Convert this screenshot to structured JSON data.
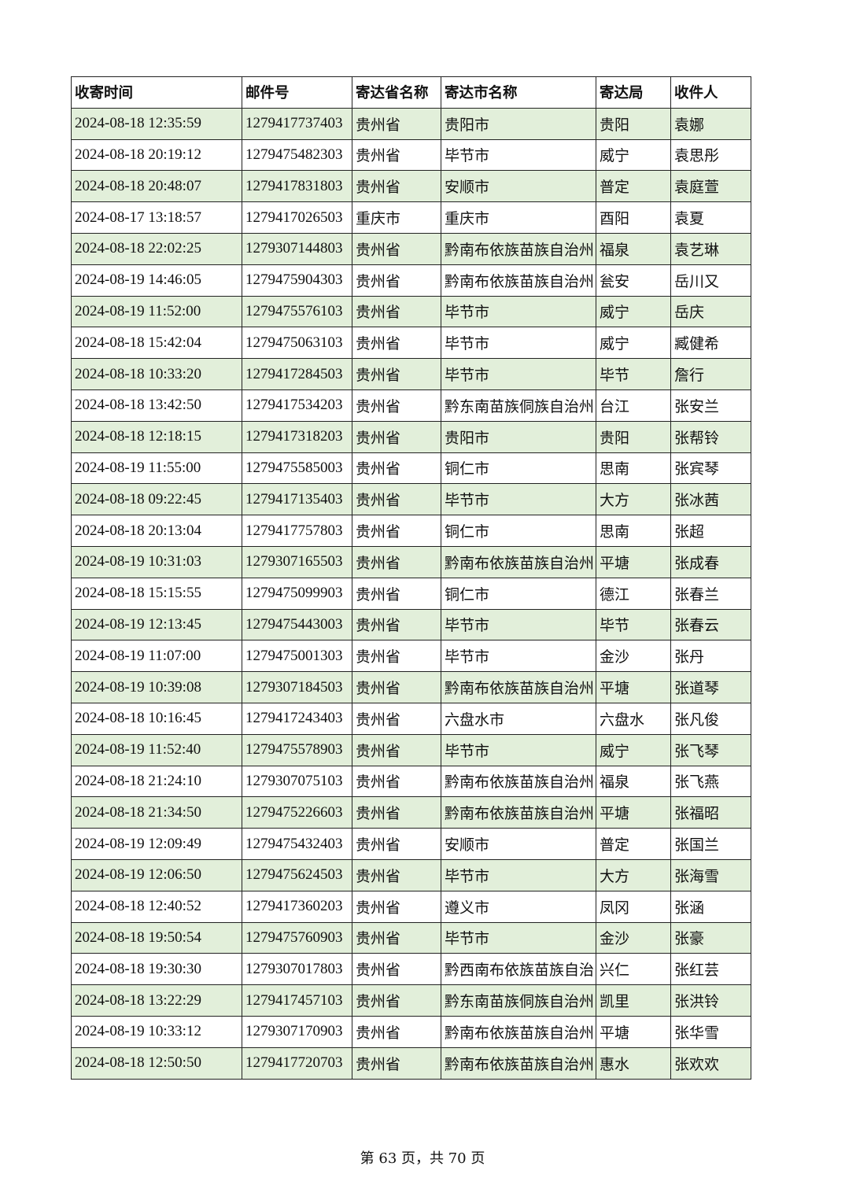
{
  "table": {
    "headers": [
      "收寄时间",
      "邮件号",
      "寄达省名称",
      "寄达市名称",
      "寄达局",
      "收件人"
    ],
    "rows": [
      [
        "2024-08-18 12:35:59",
        "1279417737403",
        "贵州省",
        "贵阳市",
        "贵阳",
        "袁娜"
      ],
      [
        "2024-08-18 20:19:12",
        "1279475482303",
        "贵州省",
        "毕节市",
        "威宁",
        "袁思彤"
      ],
      [
        "2024-08-18 20:48:07",
        "1279417831803",
        "贵州省",
        "安顺市",
        "普定",
        "袁庭萱"
      ],
      [
        "2024-08-17 13:18:57",
        "1279417026503",
        "重庆市",
        "重庆市",
        "酉阳",
        "袁夏"
      ],
      [
        "2024-08-18 22:02:25",
        "1279307144803",
        "贵州省",
        "黔南布依族苗族自治州",
        "福泉",
        "袁艺琳"
      ],
      [
        "2024-08-19 14:46:05",
        "1279475904303",
        "贵州省",
        "黔南布依族苗族自治州",
        "瓮安",
        "岳川又"
      ],
      [
        "2024-08-19 11:52:00",
        "1279475576103",
        "贵州省",
        "毕节市",
        "威宁",
        "岳庆"
      ],
      [
        "2024-08-18 15:42:04",
        "1279475063103",
        "贵州省",
        "毕节市",
        "威宁",
        "臧健希"
      ],
      [
        "2024-08-18 10:33:20",
        "1279417284503",
        "贵州省",
        "毕节市",
        "毕节",
        "詹行"
      ],
      [
        "2024-08-18 13:42:50",
        "1279417534203",
        "贵州省",
        "黔东南苗族侗族自治州",
        "台江",
        "张安兰"
      ],
      [
        "2024-08-18 12:18:15",
        "1279417318203",
        "贵州省",
        "贵阳市",
        "贵阳",
        "张帮铃"
      ],
      [
        "2024-08-19 11:55:00",
        "1279475585003",
        "贵州省",
        "铜仁市",
        "思南",
        "张宾琴"
      ],
      [
        "2024-08-18 09:22:45",
        "1279417135403",
        "贵州省",
        "毕节市",
        "大方",
        "张冰茜"
      ],
      [
        "2024-08-18 20:13:04",
        "1279417757803",
        "贵州省",
        "铜仁市",
        "思南",
        "张超"
      ],
      [
        "2024-08-19 10:31:03",
        "1279307165503",
        "贵州省",
        "黔南布依族苗族自治州",
        "平塘",
        "张成春"
      ],
      [
        "2024-08-18 15:15:55",
        "1279475099903",
        "贵州省",
        "铜仁市",
        "德江",
        "张春兰"
      ],
      [
        "2024-08-19 12:13:45",
        "1279475443003",
        "贵州省",
        "毕节市",
        "毕节",
        "张春云"
      ],
      [
        "2024-08-19 11:07:00",
        "1279475001303",
        "贵州省",
        "毕节市",
        "金沙",
        "张丹"
      ],
      [
        "2024-08-19 10:39:08",
        "1279307184503",
        "贵州省",
        "黔南布依族苗族自治州",
        "平塘",
        "张道琴"
      ],
      [
        "2024-08-18 10:16:45",
        "1279417243403",
        "贵州省",
        "六盘水市",
        "六盘水",
        "张凡俊"
      ],
      [
        "2024-08-19 11:52:40",
        "1279475578903",
        "贵州省",
        "毕节市",
        "威宁",
        "张飞琴"
      ],
      [
        "2024-08-18 21:24:10",
        "1279307075103",
        "贵州省",
        "黔南布依族苗族自治州",
        "福泉",
        "张飞燕"
      ],
      [
        "2024-08-18 21:34:50",
        "1279475226603",
        "贵州省",
        "黔南布依族苗族自治州",
        "平塘",
        "张福昭"
      ],
      [
        "2024-08-19 12:09:49",
        "1279475432403",
        "贵州省",
        "安顺市",
        "普定",
        "张国兰"
      ],
      [
        "2024-08-19 12:06:50",
        "1279475624503",
        "贵州省",
        "毕节市",
        "大方",
        "张海雪"
      ],
      [
        "2024-08-18 12:40:52",
        "1279417360203",
        "贵州省",
        "遵义市",
        "凤冈",
        "张涵"
      ],
      [
        "2024-08-18 19:50:54",
        "1279475760903",
        "贵州省",
        "毕节市",
        "金沙",
        "张豪"
      ],
      [
        "2024-08-18 19:30:30",
        "1279307017803",
        "贵州省",
        "黔西南布依族苗族自治",
        "兴仁",
        "张红芸"
      ],
      [
        "2024-08-18 13:22:29",
        "1279417457103",
        "贵州省",
        "黔东南苗族侗族自治州",
        "凯里",
        "张洪铃"
      ],
      [
        "2024-08-19 10:33:12",
        "1279307170903",
        "贵州省",
        "黔南布依族苗族自治州",
        "平塘",
        "张华雪"
      ],
      [
        "2024-08-18 12:50:50",
        "1279417720703",
        "贵州省",
        "黔南布依族苗族自治州",
        "惠水",
        "张欢欢"
      ]
    ]
  },
  "footer": {
    "page_text": "第 63 页，共 70 页"
  },
  "colors": {
    "stripe": "#e2efda",
    "border": "#222222"
  }
}
